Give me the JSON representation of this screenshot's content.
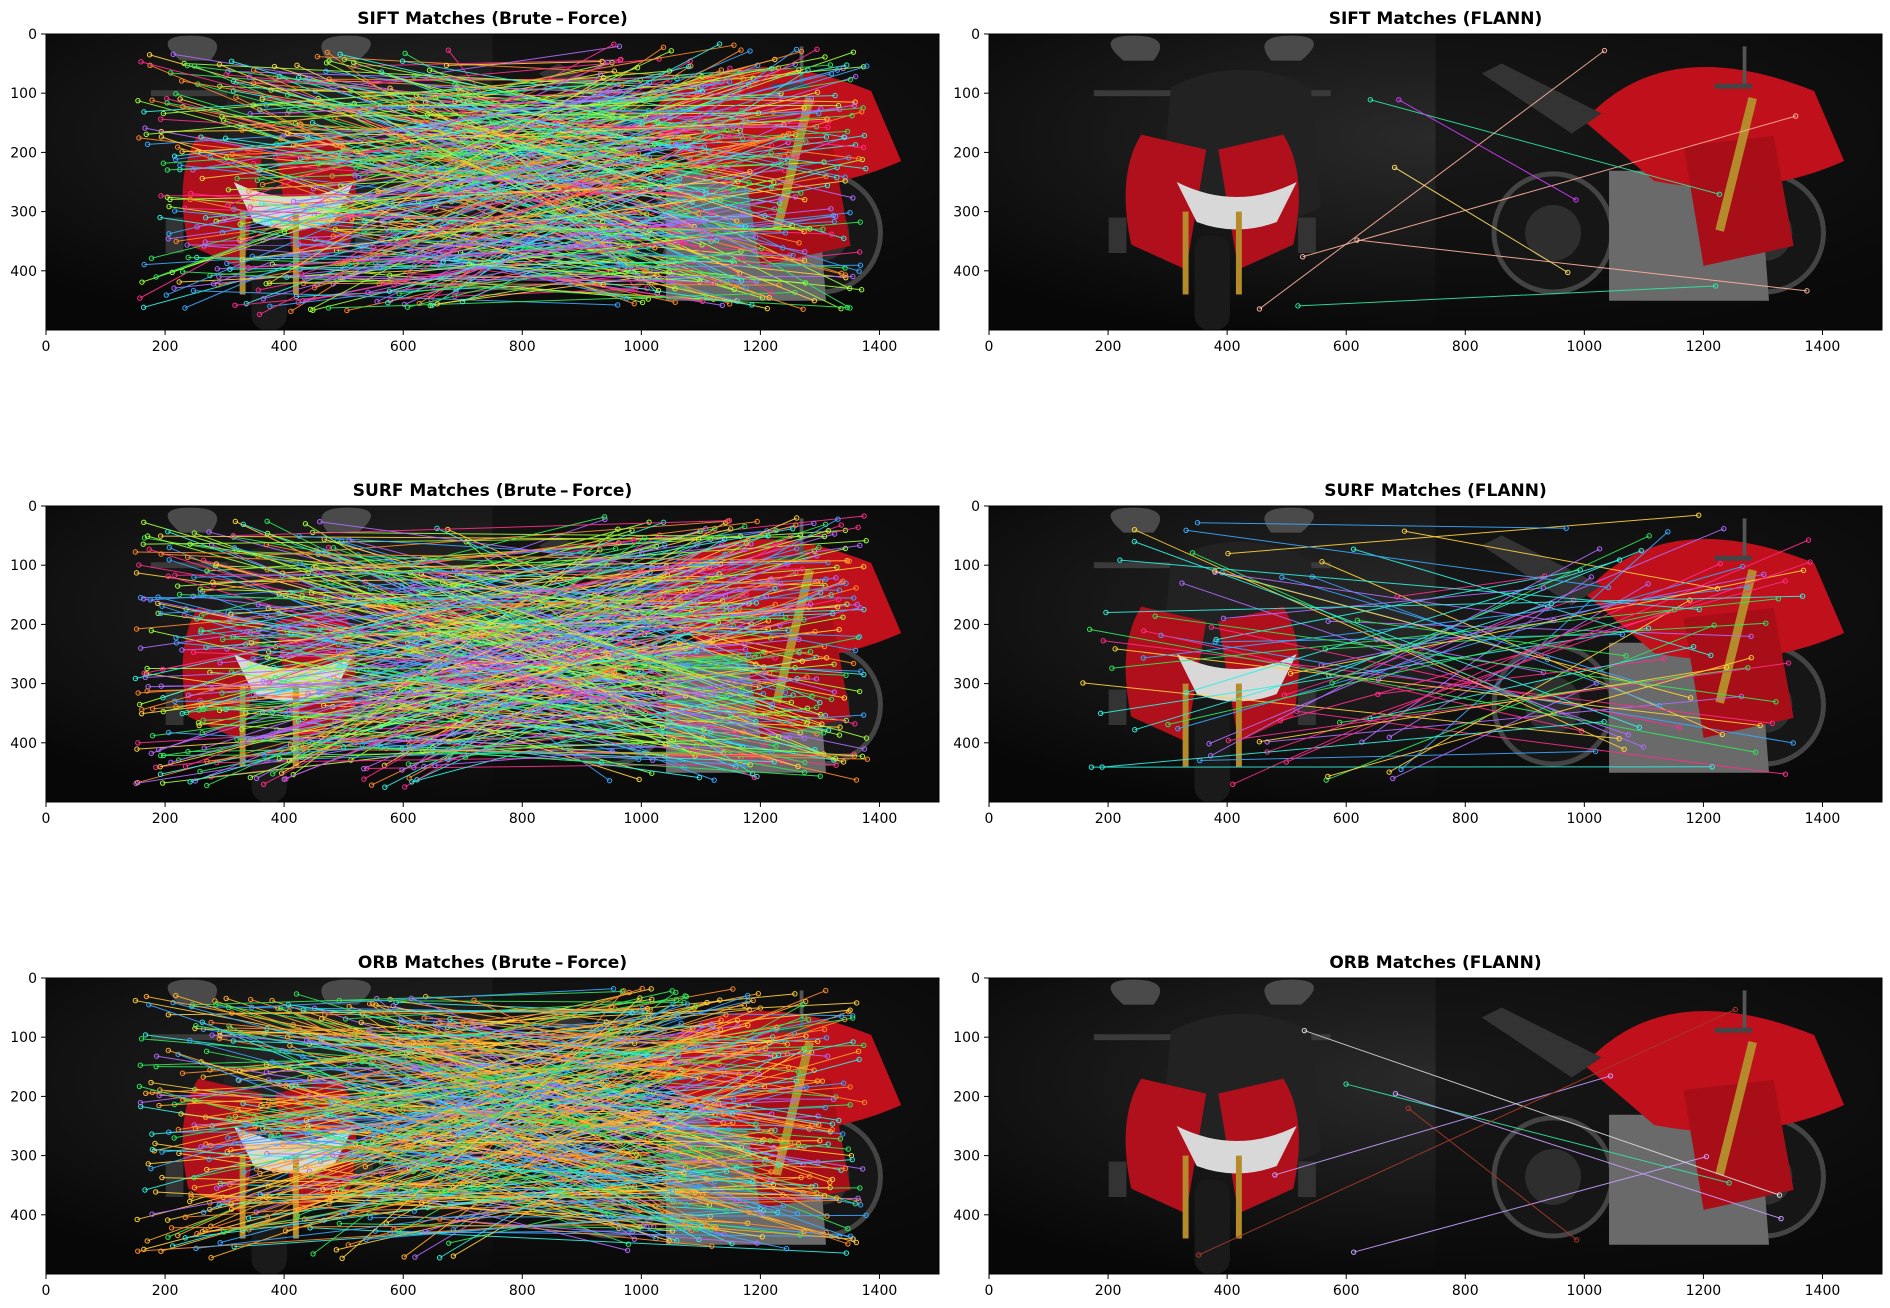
{
  "figure": {
    "panel_count": 6,
    "layout": "3 rows x 2 columns"
  },
  "chart_data": [
    {
      "type": "image",
      "title": "SIFT Matches (Brute – Force)",
      "xticks": [
        0,
        200,
        400,
        600,
        800,
        1000,
        1200,
        1400
      ],
      "yticks": [
        0,
        100,
        200,
        300,
        400
      ],
      "xlim": [
        0,
        1500
      ],
      "ylim": [
        500,
        0
      ],
      "image_content": "two side-by-side photos: red motorcycle front view (left) and side view (right) on dark background",
      "match_lines": "dense (several hundred)",
      "colors": [
        "#ff2d8a",
        "#2ee85a",
        "#3aa7ff",
        "#ffd23a",
        "#b06bff",
        "#2ff0e0",
        "#ff8a2a",
        "#9dff3a"
      ]
    },
    {
      "type": "image",
      "title": "SIFT Matches (FLANN)",
      "xticks": [
        0,
        200,
        400,
        600,
        800,
        1000,
        1200,
        1400
      ],
      "yticks": [
        0,
        100,
        200,
        300,
        400
      ],
      "xlim": [
        0,
        1500
      ],
      "ylim": [
        500,
        0
      ],
      "image_content": "two side-by-side photos: red motorcycle front view (left) and side view (right) on dark background",
      "match_lines": "sparse",
      "colors": [
        "#ff2d8a",
        "#ffe06a",
        "#ffb3a0",
        "#2ee8a0",
        "#d03dff"
      ]
    },
    {
      "type": "image",
      "title": "SURF Matches (Brute – Force)",
      "xticks": [
        0,
        200,
        400,
        600,
        800,
        1000,
        1200,
        1400
      ],
      "yticks": [
        0,
        100,
        200,
        300,
        400
      ],
      "xlim": [
        0,
        1500
      ],
      "ylim": [
        500,
        0
      ],
      "image_content": "two side-by-side photos: red motorcycle front view (left) and side view (right) on dark background",
      "match_lines": "dense (several hundred)",
      "colors": [
        "#ff2d8a",
        "#2ee85a",
        "#3aa7ff",
        "#ffd23a",
        "#b06bff",
        "#2ff0e0",
        "#ff8a2a",
        "#9dff3a"
      ]
    },
    {
      "type": "image",
      "title": "SURF Matches (FLANN)",
      "xticks": [
        0,
        200,
        400,
        600,
        800,
        1000,
        1200,
        1400
      ],
      "yticks": [
        0,
        100,
        200,
        300,
        400
      ],
      "xlim": [
        0,
        1500
      ],
      "ylim": [
        500,
        0
      ],
      "image_content": "two side-by-side photos: red motorcycle front view (left) and side view (right) on dark background",
      "match_lines": "moderate",
      "colors": [
        "#ff2d8a",
        "#2ee85a",
        "#3aa7ff",
        "#ffd23a",
        "#b06bff",
        "#2ff0e0"
      ]
    },
    {
      "type": "image",
      "title": "ORB Matches (Brute – Force)",
      "xticks": [
        0,
        200,
        400,
        600,
        800,
        1000,
        1200,
        1400
      ],
      "yticks": [
        0,
        100,
        200,
        300,
        400
      ],
      "xlim": [
        0,
        1500
      ],
      "ylim": [
        500,
        0
      ],
      "image_content": "two side-by-side photos: red motorcycle front view (left) and side view (right) on dark background",
      "match_lines": "dense",
      "colors": [
        "#ffb02a",
        "#2ee85a",
        "#3aa7ff",
        "#ffd23a",
        "#b06bff",
        "#2ff0e0",
        "#ff8a2a"
      ]
    },
    {
      "type": "image",
      "title": "ORB Matches (FLANN)",
      "xticks": [
        0,
        200,
        400,
        600,
        800,
        1000,
        1200,
        1400
      ],
      "yticks": [
        0,
        100,
        200,
        300,
        400
      ],
      "xlim": [
        0,
        1500
      ],
      "ylim": [
        500,
        0
      ],
      "image_content": "two side-by-side photos: red motorcycle front view (left) and side view (right) on dark background",
      "match_lines": "sparse",
      "colors": [
        "#c9a0ff",
        "#2ee8a0",
        "#d9d9d9",
        "#a83a2a"
      ]
    }
  ]
}
